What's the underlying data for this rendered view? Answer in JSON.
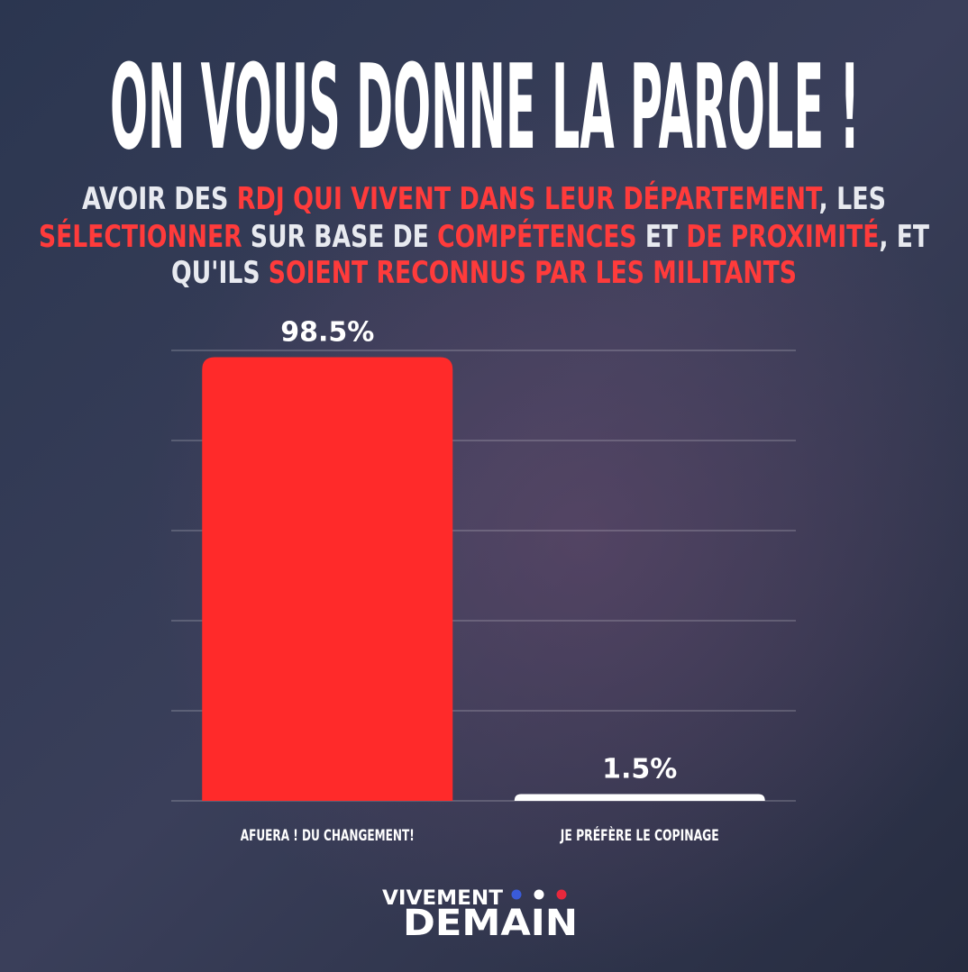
{
  "chart_data": {
    "type": "bar",
    "title": "ON VOUS DONNE LA PAROLE !",
    "subtitle": [
      [
        {
          "text": "AVOIR DES ",
          "color": "#e8eaf0"
        },
        {
          "text": "RDJ QUI VIVENT DANS LEUR DÉPARTEMENT",
          "color": "#ff3b3b"
        },
        {
          "text": ", LES",
          "color": "#e8eaf0"
        }
      ],
      [
        {
          "text": "SÉLECTIONNER",
          "color": "#ff3b3b"
        },
        {
          "text": " SUR BASE DE ",
          "color": "#e8eaf0"
        },
        {
          "text": "COMPÉTENCES",
          "color": "#ff3b3b"
        },
        {
          "text": " ET ",
          "color": "#e8eaf0"
        },
        {
          "text": "DE PROXIMITÉ",
          "color": "#ff3b3b"
        },
        {
          "text": ", ET",
          "color": "#e8eaf0"
        }
      ],
      [
        {
          "text": "QU'ILS ",
          "color": "#e8eaf0"
        },
        {
          "text": "SOIENT RECONNUS PAR LES MILITANTS",
          "color": "#ff3b3b"
        }
      ]
    ],
    "categories": [
      "AFUERA ! DU CHANGEMENT!",
      "JE PRÉFÈRE LE COPINAGE"
    ],
    "values": [
      98.5,
      1.5
    ],
    "value_labels": [
      "98.5%",
      "1.5%"
    ],
    "colors": [
      "#ff2a2a",
      "#ffffff"
    ],
    "ylim": [
      0,
      100
    ],
    "yticks": [
      0,
      20,
      40,
      60,
      80,
      100
    ],
    "grid": true
  },
  "logo": {
    "line1": "VIVEMENT",
    "line2": "DEMAIN",
    "dots": [
      "#3a5bd9",
      "#ffffff",
      "#e8283c"
    ]
  }
}
